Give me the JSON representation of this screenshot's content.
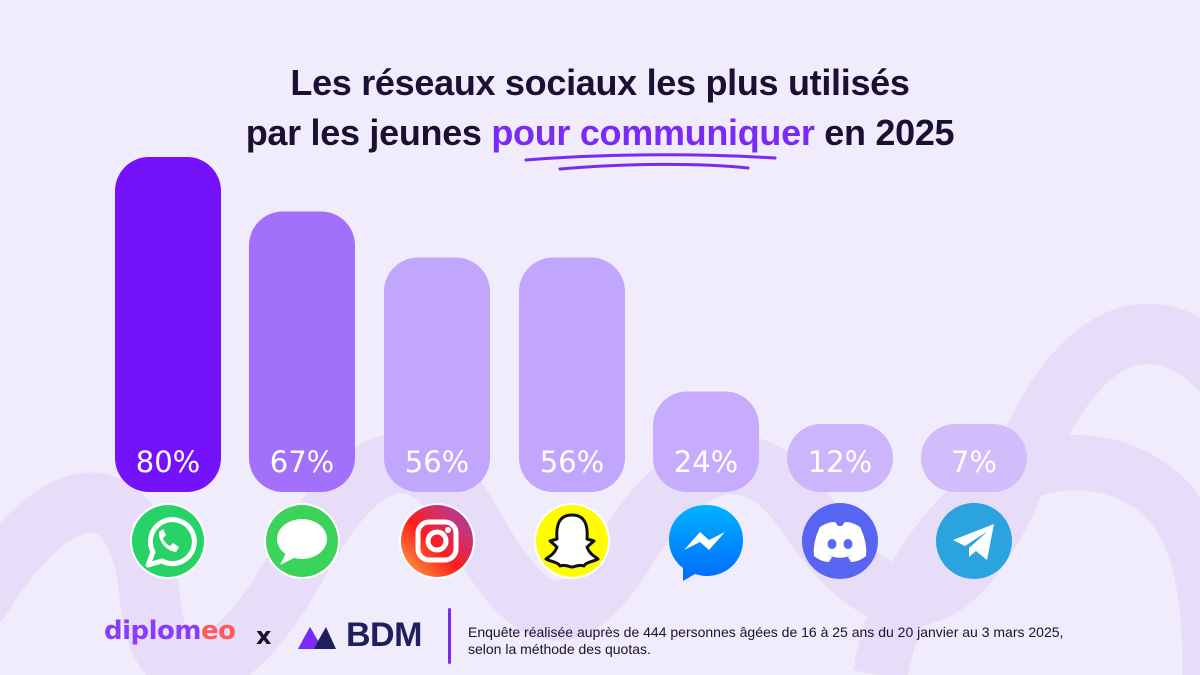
{
  "title": {
    "line1": "Les réseaux sociaux les plus utilisés",
    "line2_prefix": "par les jeunes ",
    "line2_accent": "pour communiquer",
    "line2_suffix": "  en 2025"
  },
  "colors": {
    "accent": "#7a2af5",
    "dark_text": "#1a1033",
    "background": "#f1ecfb"
  },
  "chart_data": {
    "type": "bar",
    "title": "Les réseaux sociaux les plus utilisés par les jeunes pour communiquer en 2025",
    "categories": [
      "WhatsApp",
      "Messages",
      "Instagram",
      "Snapchat",
      "Messenger",
      "Discord",
      "Telegram"
    ],
    "values": [
      80,
      67,
      56,
      56,
      24,
      12,
      7
    ],
    "labels": [
      "80%",
      "67%",
      "56%",
      "56%",
      "24%",
      "12%",
      "7%"
    ],
    "bar_colors": [
      "#7412fb",
      "#a270fb",
      "#c2a6fd",
      "#c2a6fd",
      "#c7abfc",
      "#cdb5fc",
      "#d2bcfc"
    ],
    "icons": [
      "whatsapp-icon",
      "messages-icon",
      "instagram-icon",
      "snapchat-icon",
      "messenger-icon",
      "discord-icon",
      "telegram-icon"
    ],
    "ylim": [
      0,
      80
    ],
    "xlabel": "",
    "ylabel": ""
  },
  "footer": {
    "brand1_main": "diplom",
    "brand1_end": "eo",
    "cross": "x",
    "brand2": "BDM",
    "note_line1": "Enquête réalisée auprès de 444 personnes âgées de 16 à 25 ans du 20 janvier au 3 mars 2025,",
    "note_line2": "selon la méthode des quotas."
  }
}
